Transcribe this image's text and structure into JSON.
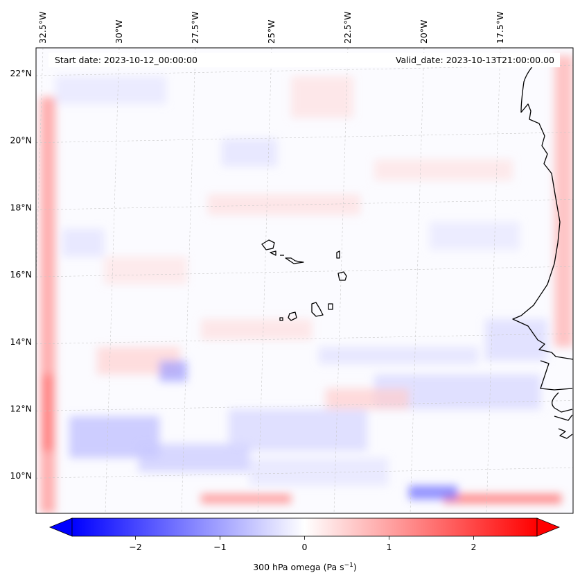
{
  "map": {
    "start_date": "Start date: 2023-10-12_00:00:00",
    "valid_date": "Valid_date: 2023-10-13T21:00:00.00",
    "lon_ticks": [
      {
        "value": -32.5,
        "label": "32.5°W"
      },
      {
        "value": -30.0,
        "label": "30°W"
      },
      {
        "value": -27.5,
        "label": "27.5°W"
      },
      {
        "value": -25.0,
        "label": "25°W"
      },
      {
        "value": -22.5,
        "label": "22.5°W"
      },
      {
        "value": -20.0,
        "label": "20°W"
      },
      {
        "value": -17.5,
        "label": "17.5°W"
      }
    ],
    "lat_ticks": [
      {
        "value": 22,
        "label": "22°N"
      },
      {
        "value": 20,
        "label": "20°N"
      },
      {
        "value": 18,
        "label": "18°N"
      },
      {
        "value": 16,
        "label": "16°N"
      },
      {
        "value": 14,
        "label": "14°N"
      },
      {
        "value": 12,
        "label": "12°N"
      },
      {
        "value": 10,
        "label": "10°N"
      }
    ],
    "extent": {
      "lon_min": -32.6,
      "lon_max": -15.0,
      "lat_min": 8.8,
      "lat_max": 22.8
    },
    "colors": {
      "negative": "#0000ff",
      "neutral": "#ffffff",
      "positive": "#ff0000",
      "coast": "#000000",
      "grid": "#c8c8c8"
    },
    "gridlines": true
  },
  "colorbar": {
    "label": "300 hPa omega (Pa s",
    "label_sup": "−1",
    "label_end": ")",
    "range": [
      -2.75,
      2.75
    ],
    "extend": "both",
    "ticks": [
      {
        "value": -2,
        "label": "−2"
      },
      {
        "value": -1,
        "label": "−1"
      },
      {
        "value": 0,
        "label": "0"
      },
      {
        "value": 1,
        "label": "1"
      },
      {
        "value": 2,
        "label": "2"
      }
    ]
  }
}
